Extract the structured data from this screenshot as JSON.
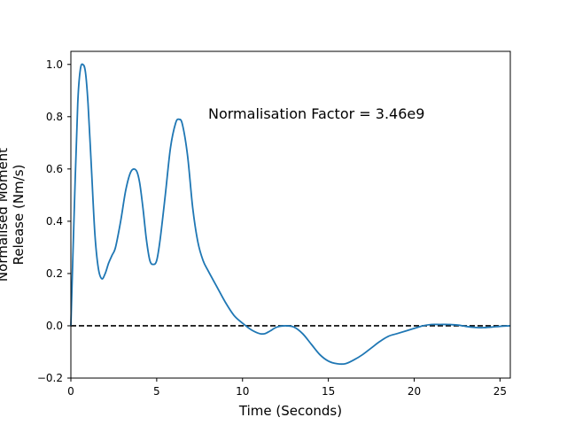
{
  "chart_data": {
    "type": "line",
    "title": "",
    "xlabel": "Time (Seconds)",
    "ylabel_lines": [
      "Normalised Moment",
      "Release (Nm/s)"
    ],
    "xlim": [
      0,
      25.6
    ],
    "ylim": [
      -0.2,
      1.05
    ],
    "xticks": [
      0,
      5,
      10,
      15,
      20,
      25
    ],
    "xtick_labels": [
      "0",
      "5",
      "10",
      "15",
      "20",
      "25"
    ],
    "yticks": [
      -0.2,
      0.0,
      0.2,
      0.4,
      0.6,
      0.8,
      1.0
    ],
    "ytick_labels": [
      "−0.2",
      "0.0",
      "0.2",
      "0.4",
      "0.6",
      "0.8",
      "1.0"
    ],
    "grid": false,
    "annotation": {
      "text": "Normalisation Factor = 3.46e9",
      "x": 8.0,
      "y": 0.81
    },
    "reference_line": {
      "y": 0.0,
      "style": "dashed",
      "color": "#000000"
    },
    "series": [
      {
        "color": "#1f77b4",
        "x": [
          0.0,
          0.2,
          0.4,
          0.55,
          0.7,
          0.85,
          1.0,
          1.2,
          1.4,
          1.6,
          1.8,
          2.0,
          2.2,
          2.4,
          2.6,
          2.9,
          3.2,
          3.5,
          3.8,
          4.0,
          4.2,
          4.4,
          4.6,
          4.8,
          5.0,
          5.2,
          5.5,
          5.8,
          6.1,
          6.3,
          6.5,
          6.8,
          7.1,
          7.4,
          7.7,
          8.0,
          8.5,
          9.0,
          9.5,
          10.0,
          10.5,
          11.0,
          11.3,
          11.6,
          12.0,
          12.5,
          13.0,
          13.5,
          14.0,
          14.5,
          15.0,
          15.5,
          16.0,
          16.5,
          17.0,
          17.5,
          18.0,
          18.5,
          19.0,
          19.5,
          20.0,
          20.5,
          21.0,
          21.5,
          22.0,
          22.5,
          23.0,
          23.5,
          24.0,
          24.5,
          25.0,
          25.6
        ],
        "y": [
          0.0,
          0.45,
          0.85,
          0.98,
          1.0,
          0.97,
          0.85,
          0.6,
          0.35,
          0.22,
          0.18,
          0.2,
          0.24,
          0.27,
          0.3,
          0.4,
          0.52,
          0.59,
          0.595,
          0.55,
          0.45,
          0.33,
          0.25,
          0.235,
          0.25,
          0.33,
          0.5,
          0.68,
          0.775,
          0.79,
          0.77,
          0.65,
          0.45,
          0.32,
          0.25,
          0.21,
          0.15,
          0.09,
          0.04,
          0.01,
          -0.015,
          -0.03,
          -0.03,
          -0.02,
          -0.005,
          0.0,
          -0.005,
          -0.03,
          -0.07,
          -0.11,
          -0.135,
          -0.145,
          -0.145,
          -0.13,
          -0.11,
          -0.085,
          -0.06,
          -0.04,
          -0.03,
          -0.02,
          -0.01,
          0.0,
          0.005,
          0.005,
          0.005,
          0.003,
          -0.002,
          -0.006,
          -0.007,
          -0.005,
          -0.002,
          0.0
        ]
      }
    ]
  }
}
